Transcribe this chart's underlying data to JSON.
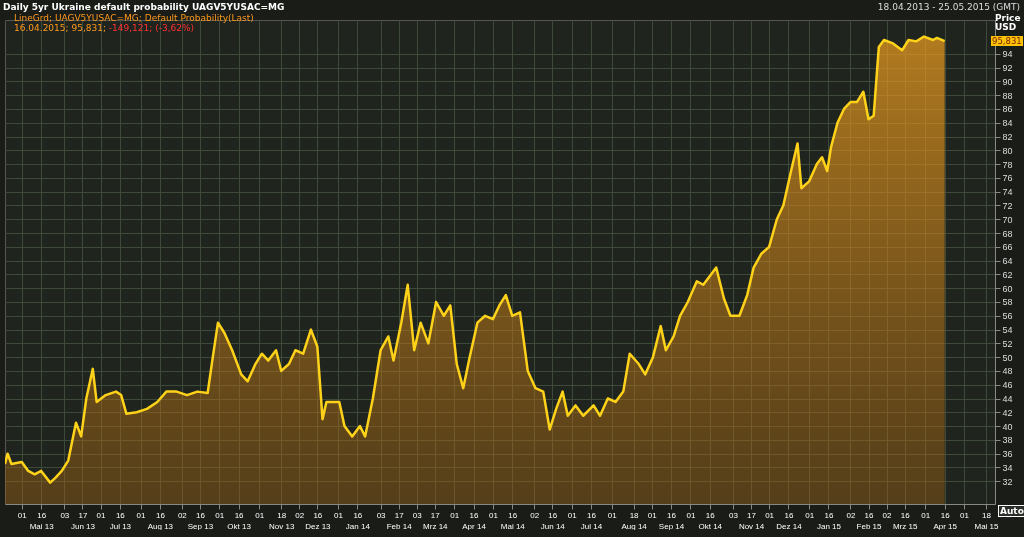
{
  "chart_data": {
    "type": "area",
    "title": "Daily 5yr Ukraine default probability UAGV5YUSAC=MG",
    "subtitle": "LineGrd; UAGV5YUSAC=MG; Default Probability(Last)",
    "ylabel": "Price USD",
    "annotations": [
      "16.04.2015; 95,831;",
      "-149,121; (-3,62%)",
      "18.04.2013 - 25.05.2015 (GMT)",
      "Auto",
      "95,831"
    ],
    "x": [
      "2013-04-18",
      "2013-04-20",
      "2013-04-23",
      "2013-05-01",
      "2013-05-06",
      "2013-05-11",
      "2013-05-16",
      "2013-05-23",
      "2013-05-27",
      "2013-06-01",
      "2013-06-06",
      "2013-06-12",
      "2013-06-16",
      "2013-06-20",
      "2013-06-25",
      "2013-06-28",
      "2013-07-05",
      "2013-07-13",
      "2013-07-17",
      "2013-07-21",
      "2013-07-29",
      "2013-08-06",
      "2013-08-14",
      "2013-08-21",
      "2013-08-29",
      "2013-09-06",
      "2013-09-14",
      "2013-09-22",
      "2013-09-26",
      "2013-09-30",
      "2013-10-05",
      "2013-10-11",
      "2013-10-18",
      "2013-10-23",
      "2013-10-29",
      "2013-11-03",
      "2013-11-08",
      "2013-11-14",
      "2013-11-18",
      "2013-11-24",
      "2013-11-29",
      "2013-12-05",
      "2013-12-11",
      "2013-12-16",
      "2013-12-20",
      "2013-12-23",
      "2014-01-02",
      "2014-01-06",
      "2014-01-12",
      "2014-01-18",
      "2014-01-22",
      "2014-01-28",
      "2014-02-03",
      "2014-02-09",
      "2014-02-13",
      "2014-02-19",
      "2014-02-24",
      "2014-03-01",
      "2014-03-06",
      "2014-03-12",
      "2014-03-18",
      "2014-03-24",
      "2014-03-29",
      "2014-04-03",
      "2014-04-08",
      "2014-04-13",
      "2014-04-19",
      "2014-04-25",
      "2014-05-01",
      "2014-05-06",
      "2014-05-11",
      "2014-05-16",
      "2014-05-22",
      "2014-05-28",
      "2014-06-03",
      "2014-06-09",
      "2014-06-14",
      "2014-06-19",
      "2014-06-24",
      "2014-06-28",
      "2014-07-04",
      "2014-07-10",
      "2014-07-18",
      "2014-07-23",
      "2014-07-29",
      "2014-08-04",
      "2014-08-10",
      "2014-08-15",
      "2014-08-22",
      "2014-08-27",
      "2014-09-02",
      "2014-09-08",
      "2014-09-12",
      "2014-09-18",
      "2014-09-23",
      "2014-09-29",
      "2014-10-06",
      "2014-10-11",
      "2014-10-17",
      "2014-10-21",
      "2014-10-27",
      "2014-11-01",
      "2014-11-08",
      "2014-11-14",
      "2014-11-19",
      "2014-11-25",
      "2014-12-01",
      "2014-12-07",
      "2014-12-12",
      "2014-12-18",
      "2014-12-23",
      "2014-12-26",
      "2015-01-01",
      "2015-01-07",
      "2015-01-11",
      "2015-01-15",
      "2015-01-18",
      "2015-01-23",
      "2015-01-28",
      "2015-02-02",
      "2015-02-07",
      "2015-02-12",
      "2015-02-16",
      "2015-02-20",
      "2015-02-24",
      "2015-02-28",
      "2015-03-07",
      "2015-03-14",
      "2015-03-19",
      "2015-03-25",
      "2015-03-31",
      "2015-04-07",
      "2015-04-10",
      "2015-04-16"
    ],
    "series": [
      {
        "color": "#ffd21a",
        "values": [
          34.5,
          36,
          34.5,
          34.8,
          33.5,
          33,
          33.5,
          31.8,
          32.5,
          33.5,
          35,
          40.5,
          38.5,
          44,
          48.3,
          43.5,
          44.5,
          45,
          44.5,
          41.8,
          42,
          42.5,
          43.5,
          45,
          45,
          44.5,
          45,
          44.8,
          50,
          55,
          53.5,
          51,
          47.5,
          46.5,
          49,
          50.5,
          49.5,
          51,
          48,
          49,
          51,
          50.5,
          54,
          51.5,
          41,
          43.5,
          43.5,
          40,
          38.5,
          40,
          38.5,
          44,
          51,
          53,
          49.5,
          55,
          60.5,
          51,
          55,
          52,
          58,
          56,
          57.5,
          49,
          45.5,
          50,
          55,
          56,
          55.5,
          57.5,
          59,
          56,
          56.5,
          48,
          45.5,
          45,
          39.5,
          42.5,
          45,
          41.5,
          43,
          41.5,
          43,
          41.5,
          44,
          43.5,
          45,
          50.5,
          49,
          47.5,
          50,
          54.5,
          51,
          53,
          56,
          58,
          61,
          60.5,
          62,
          63,
          58.5,
          56,
          56,
          59,
          63,
          65,
          66,
          70,
          72,
          77,
          81,
          74.5,
          75.5,
          78,
          79,
          77,
          80.5,
          84,
          86,
          87,
          87,
          88.5,
          84.5,
          85,
          95,
          96,
          95.5,
          94.5,
          96,
          95.8,
          96.5,
          96,
          96.3,
          95.831
        ]
      }
    ],
    "xlim": [
      "2013-04-18",
      "2015-05-25"
    ],
    "ylim": [
      28.7,
      98.9
    ],
    "yticks": [
      32,
      34,
      36,
      38,
      40,
      42,
      44,
      46,
      48,
      50,
      52,
      54,
      56,
      58,
      60,
      62,
      64,
      66,
      68,
      70,
      72,
      74,
      76,
      78,
      80,
      82,
      84,
      86,
      88,
      90,
      92,
      94
    ],
    "xticks": [
      {
        "value": "2013-05-01",
        "label": "01"
      },
      {
        "value": "2013-05-16",
        "label": "16\nMai 13"
      },
      {
        "value": "2013-06-03",
        "label": "03"
      },
      {
        "value": "2013-06-17",
        "label": "17\nJun 13"
      },
      {
        "value": "2013-07-01",
        "label": "01"
      },
      {
        "value": "2013-07-16",
        "label": "16\nJul 13"
      },
      {
        "value": "2013-08-01",
        "label": "01"
      },
      {
        "value": "2013-08-16",
        "label": "16\nAug 13"
      },
      {
        "value": "2013-09-02",
        "label": "02"
      },
      {
        "value": "2013-09-16",
        "label": "16\nSep 13"
      },
      {
        "value": "2013-10-01",
        "label": "01"
      },
      {
        "value": "2013-10-16",
        "label": "16\nOkt 13"
      },
      {
        "value": "2013-11-01",
        "label": "01"
      },
      {
        "value": "2013-11-18",
        "label": "18\nNov 13"
      },
      {
        "value": "2013-12-02",
        "label": "02"
      },
      {
        "value": "2013-12-16",
        "label": "16\nDez 13"
      },
      {
        "value": "2014-01-01",
        "label": "01"
      },
      {
        "value": "2014-01-16",
        "label": "16\nJan 14"
      },
      {
        "value": "2014-02-03",
        "label": "03"
      },
      {
        "value": "2014-02-17",
        "label": "17\nFeb 14"
      },
      {
        "value": "2014-03-03",
        "label": "03"
      },
      {
        "value": "2014-03-17",
        "label": "17\nMrz 14"
      },
      {
        "value": "2014-04-01",
        "label": "01"
      },
      {
        "value": "2014-04-16",
        "label": "16\nApr 14"
      },
      {
        "value": "2014-05-01",
        "label": "01"
      },
      {
        "value": "2014-05-16",
        "label": "16\nMai 14"
      },
      {
        "value": "2014-06-02",
        "label": "02"
      },
      {
        "value": "2014-06-16",
        "label": "16\nJun 14"
      },
      {
        "value": "2014-07-01",
        "label": "01"
      },
      {
        "value": "2014-07-16",
        "label": "16\nJul 14"
      },
      {
        "value": "2014-08-01",
        "label": "01"
      },
      {
        "value": "2014-08-18",
        "label": "18\nAug 14"
      },
      {
        "value": "2014-09-01",
        "label": "01"
      },
      {
        "value": "2014-09-16",
        "label": "16\nSep 14"
      },
      {
        "value": "2014-10-01",
        "label": "01"
      },
      {
        "value": "2014-10-16",
        "label": "16\nOkt 14"
      },
      {
        "value": "2014-11-03",
        "label": "03"
      },
      {
        "value": "2014-11-17",
        "label": "17\nNov 14"
      },
      {
        "value": "2014-12-01",
        "label": "01"
      },
      {
        "value": "2014-12-16",
        "label": "16\nDez 14"
      },
      {
        "value": "2015-01-01",
        "label": "01"
      },
      {
        "value": "2015-01-16",
        "label": "16\nJan 15"
      },
      {
        "value": "2015-02-02",
        "label": "02"
      },
      {
        "value": "2015-02-16",
        "label": "16\nFeb 15"
      },
      {
        "value": "2015-03-02",
        "label": "02"
      },
      {
        "value": "2015-03-16",
        "label": "16\nMrz 15"
      },
      {
        "value": "2015-04-01",
        "label": "01"
      },
      {
        "value": "2015-04-16",
        "label": "16\nApr 15"
      },
      {
        "value": "2015-05-01",
        "label": "01"
      },
      {
        "value": "2015-05-18",
        "label": "18\nMai 15"
      }
    ],
    "grid": true,
    "legend": false
  }
}
